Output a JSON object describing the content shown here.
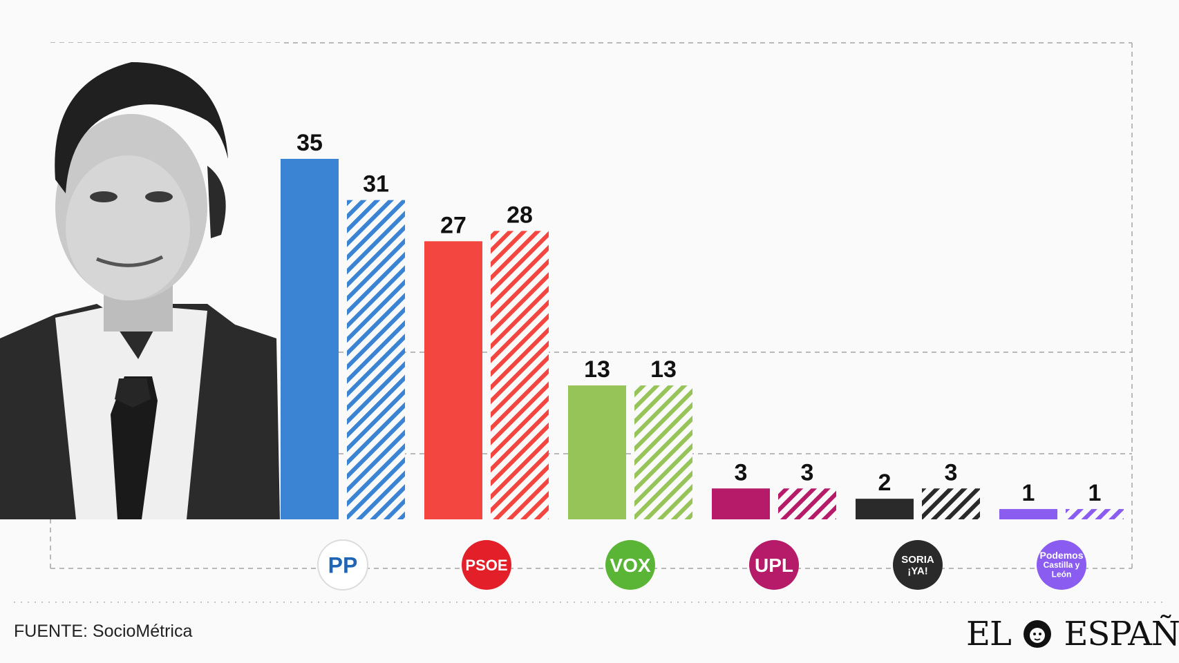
{
  "chart_data": {
    "type": "bar",
    "categories": [
      "PP",
      "PSOE",
      "VOX",
      "UPL",
      "Soria ¡YA!",
      "Podemos Castilla y León"
    ],
    "series": [
      {
        "values": [
          35,
          27,
          13,
          3,
          2,
          1
        ],
        "style": "solid"
      },
      {
        "values": [
          31,
          28,
          13,
          3,
          3,
          1
        ],
        "style": "hatched"
      }
    ],
    "colors": [
      "#3b84d3",
      "#f44640",
      "#96c458",
      "#b51b69",
      "#2a2a2a",
      "#8b5cf0"
    ],
    "logo_colors": [
      "#1f64b5",
      "#e3202a",
      "#5ab536",
      "#b51b69",
      "#2a2a2a",
      "#8b5cf0"
    ],
    "logos": [
      {
        "text": "PP"
      },
      {
        "text": "PSOE"
      },
      {
        "text": "VOX"
      },
      {
        "text": "UPL"
      },
      {
        "line1": "SORIA",
        "line2": "¡YA!"
      },
      {
        "line1": "Podemos",
        "line2": "Castilla y",
        "line3": "León"
      }
    ],
    "ylim": [
      0,
      35
    ],
    "grid": "dashed"
  },
  "footer": {
    "source": "FUENTE: SocioMétrica"
  },
  "brand": {
    "left": "EL",
    "right": "ESPAÑOL"
  },
  "icons": {
    "photo": "politician-portrait-icon",
    "brand_mark": "lion-icon"
  }
}
